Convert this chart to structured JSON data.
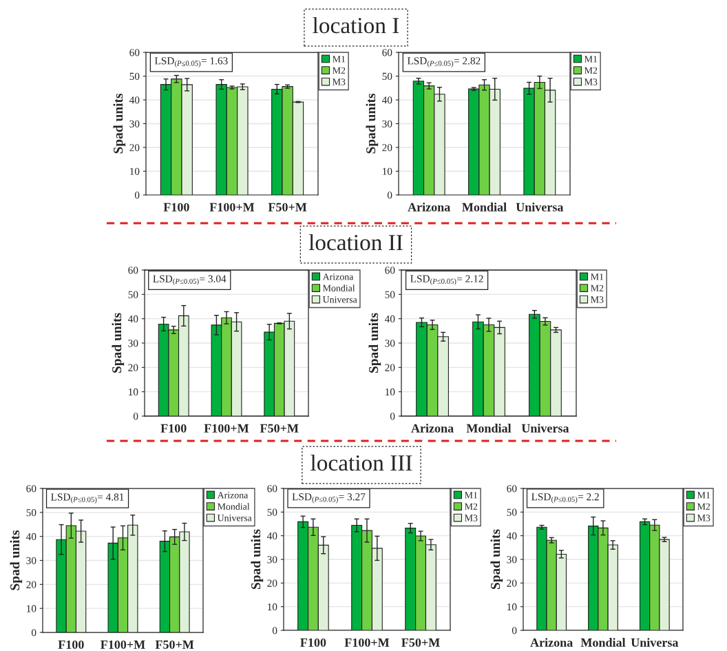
{
  "chart_data": [
    {
      "type": "bar",
      "title": "location I",
      "ylabel": "Spad units",
      "categories": [
        "F100",
        "F100+M",
        "F50+M"
      ],
      "ylim": [
        0,
        60
      ],
      "yticks": [
        0,
        10,
        20,
        30,
        40,
        50,
        60
      ],
      "grid": "y",
      "legend": "top right",
      "annotations": [
        "LSD$_{(P≤0.05)}$= 1.63"
      ],
      "series": [
        {
          "name": "M1",
          "color": "#00b140",
          "values": [
            46.5,
            46.5,
            44.5
          ],
          "errors": [
            2.3,
            2.0,
            2.0
          ]
        },
        {
          "name": "M2",
          "color": "#70d044",
          "values": [
            48.8,
            45.2,
            45.6
          ],
          "errors": [
            1.5,
            0.6,
            0.7
          ]
        },
        {
          "name": "M3",
          "color": "#dff0d8",
          "values": [
            46.4,
            45.5,
            39.1
          ],
          "errors": [
            2.6,
            1.2,
            0.2
          ]
        }
      ]
    },
    {
      "type": "bar",
      "ylabel": "Spad units",
      "categories": [
        "Arizona",
        "Mondial",
        "Universa"
      ],
      "ylim": [
        0,
        60
      ],
      "yticks": [
        0,
        10,
        20,
        30,
        40,
        50,
        60
      ],
      "grid": "y",
      "legend": "top right",
      "annotations": [
        "LSD$_{(P≤0.05)}$= 2.82"
      ],
      "series": [
        {
          "name": "M1",
          "color": "#00b140",
          "values": [
            47.9,
            44.6,
            44.9
          ],
          "errors": [
            1.2,
            0.6,
            2.5
          ]
        },
        {
          "name": "M2",
          "color": "#70d044",
          "values": [
            45.9,
            46.3,
            47.4
          ],
          "errors": [
            1.3,
            2.2,
            2.6
          ]
        },
        {
          "name": "M3",
          "color": "#dff0d8",
          "values": [
            42.4,
            44.5,
            44.1
          ],
          "errors": [
            2.9,
            4.6,
            5.0
          ]
        }
      ]
    },
    {
      "type": "bar",
      "title": "location II",
      "ylabel": "Spad units",
      "categories": [
        "F100",
        "F100+M",
        "F50+M"
      ],
      "ylim": [
        0,
        60
      ],
      "yticks": [
        0,
        10,
        20,
        30,
        40,
        50,
        60
      ],
      "grid": "y",
      "legend": "top right",
      "annotations": [
        "LSD$_{(P≤0.05)}$= 3.04"
      ],
      "series": [
        {
          "name": "Arizona",
          "color": "#00b140",
          "values": [
            37.8,
            37.4,
            34.5
          ],
          "errors": [
            2.8,
            4.0,
            3.2
          ]
        },
        {
          "name": "Mondial",
          "color": "#70d044",
          "values": [
            35.4,
            40.4,
            38.1
          ],
          "errors": [
            1.5,
            2.5,
            0.2
          ]
        },
        {
          "name": "Universa",
          "color": "#dff0d8",
          "values": [
            41.2,
            38.7,
            39.0
          ],
          "errors": [
            4.2,
            3.8,
            3.2
          ]
        }
      ]
    },
    {
      "type": "bar",
      "ylabel": "Spad units",
      "categories": [
        "Arizona",
        "Mondial",
        "Universa"
      ],
      "ylim": [
        0,
        60
      ],
      "yticks": [
        0,
        10,
        20,
        30,
        40,
        50,
        60
      ],
      "grid": "y",
      "legend": "top right",
      "annotations": [
        "LSD$_{(P≤0.05)}$= 2.12"
      ],
      "series": [
        {
          "name": "M1",
          "color": "#00b140",
          "values": [
            38.5,
            38.7,
            41.8
          ],
          "errors": [
            1.8,
            2.9,
            1.6
          ]
        },
        {
          "name": "M2",
          "color": "#70d044",
          "values": [
            37.5,
            37.5,
            38.9
          ],
          "errors": [
            1.9,
            2.7,
            1.5
          ]
        },
        {
          "name": "M3",
          "color": "#dff0d8",
          "values": [
            32.6,
            36.4,
            35.4
          ],
          "errors": [
            1.8,
            2.6,
            1.0
          ]
        }
      ]
    },
    {
      "type": "bar",
      "ylabel": "Spad units",
      "categories": [
        "F100",
        "F100+M",
        "F50+M"
      ],
      "ylim": [
        0,
        60
      ],
      "yticks": [
        0,
        10,
        20,
        30,
        40,
        50,
        60
      ],
      "grid": "y",
      "legend": "top right",
      "annotations": [
        "LSD$_{(P≤0.05)}$= 4.81"
      ],
      "series": [
        {
          "name": "Arizona",
          "color": "#00b140",
          "values": [
            38.7,
            37.2,
            38.0
          ],
          "errors": [
            6.2,
            6.7,
            4.3
          ]
        },
        {
          "name": "Mondial",
          "color": "#70d044",
          "values": [
            44.5,
            39.4,
            39.8
          ],
          "errors": [
            5.2,
            5.0,
            3.1
          ]
        },
        {
          "name": "Universa",
          "color": "#dff0d8",
          "values": [
            42.2,
            44.7,
            41.9
          ],
          "errors": [
            4.6,
            4.2,
            3.6
          ]
        }
      ]
    },
    {
      "type": "bar",
      "title": "location III",
      "ylabel": "Spad units",
      "categories": [
        "F100",
        "F100+M",
        "F50+M"
      ],
      "ylim": [
        0,
        60
      ],
      "yticks": [
        0,
        10,
        20,
        30,
        40,
        50,
        60
      ],
      "grid": "y",
      "legend": "top right",
      "annotations": [
        "LSD$_{(P≤0.05)}$= 3.27"
      ],
      "series": [
        {
          "name": "M1",
          "color": "#00b140",
          "values": [
            45.9,
            44.4,
            43.2
          ],
          "errors": [
            2.4,
            2.7,
            2.0
          ]
        },
        {
          "name": "M2",
          "color": "#70d044",
          "values": [
            43.6,
            42.2,
            39.9
          ],
          "errors": [
            3.5,
            4.9,
            2.0
          ]
        },
        {
          "name": "M3",
          "color": "#dff0d8",
          "values": [
            36.0,
            34.7,
            36.2
          ],
          "errors": [
            3.6,
            5.1,
            2.2
          ]
        }
      ]
    },
    {
      "type": "bar",
      "ylabel": "Spad units",
      "categories": [
        "Arizona",
        "Mondial",
        "Universa"
      ],
      "ylim": [
        0,
        60
      ],
      "yticks": [
        0,
        10,
        20,
        30,
        40,
        50,
        60
      ],
      "grid": "y",
      "legend": "top right",
      "annotations": [
        "LSD$_{(P≤0.05)}$= 2.2"
      ],
      "series": [
        {
          "name": "M1",
          "color": "#00b140",
          "values": [
            43.6,
            44.1,
            45.9
          ],
          "errors": [
            0.8,
            3.8,
            1.2
          ]
        },
        {
          "name": "M2",
          "color": "#70d044",
          "values": [
            38.1,
            43.3,
            44.5
          ],
          "errors": [
            1.1,
            3.0,
            2.3
          ]
        },
        {
          "name": "M3",
          "color": "#dff0d8",
          "values": [
            32.2,
            36.1,
            38.4
          ],
          "errors": [
            1.6,
            1.8,
            0.9
          ]
        }
      ]
    }
  ]
}
